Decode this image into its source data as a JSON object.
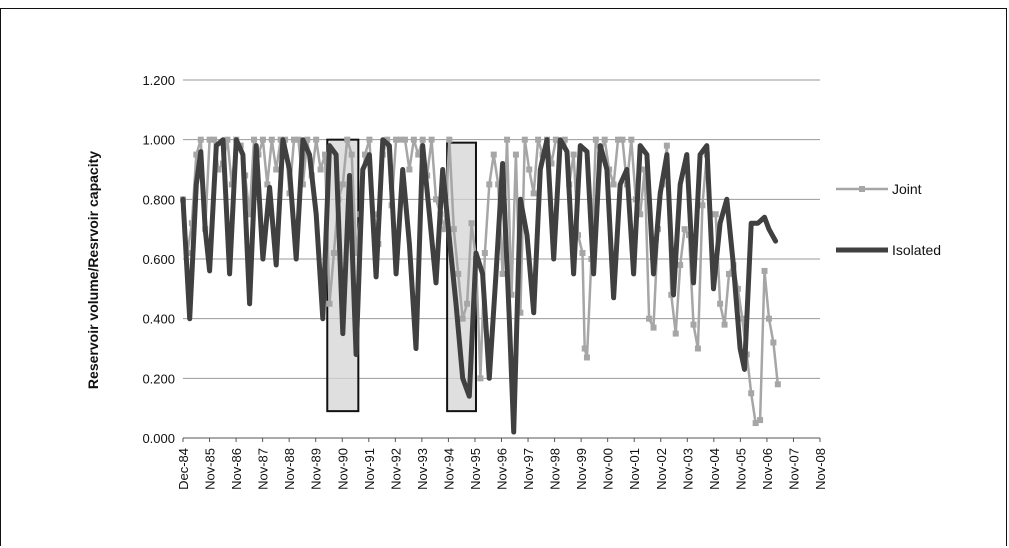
{
  "chart_data": {
    "type": "line",
    "xlabel": "",
    "ylabel": "Reservoir volume/Resrvoir capacity",
    "ylim": [
      0,
      1.2
    ],
    "yticks": [
      "0.000",
      "0.200",
      "0.400",
      "0.600",
      "0.800",
      "1.000",
      "1.200"
    ],
    "xticks": [
      "Dec-84",
      "Nov-85",
      "Nov-86",
      "Nov-87",
      "Nov-88",
      "Nov-89",
      "Nov-90",
      "Nov-91",
      "Nov-92",
      "Nov-93",
      "Nov-94",
      "Nov-95",
      "Nov-96",
      "Nov-97",
      "Nov-98",
      "Nov-99",
      "Nov-00",
      "Nov-01",
      "Nov-02",
      "Nov-03",
      "Nov-04",
      "Nov-05",
      "Nov-06",
      "Nov-07",
      "Nov-08"
    ],
    "x_unit": "months since Dec-84",
    "grid": "horizontal",
    "legend_position": "right",
    "series": [
      {
        "name": "Joint",
        "color": "#a6a6a6",
        "marker": "square",
        "points": [
          [
            0,
            0.8
          ],
          [
            2,
            0.62
          ],
          [
            4,
            0.72
          ],
          [
            6,
            0.95
          ],
          [
            8,
            1.0
          ],
          [
            10,
            0.7
          ],
          [
            12,
            1.0
          ],
          [
            14,
            1.0
          ],
          [
            16,
            0.9
          ],
          [
            18,
            0.92
          ],
          [
            20,
            1.0
          ],
          [
            22,
            0.85
          ],
          [
            24,
            1.0
          ],
          [
            26,
            0.98
          ],
          [
            28,
            0.88
          ],
          [
            30,
            0.75
          ],
          [
            32,
            1.0
          ],
          [
            34,
            0.95
          ],
          [
            36,
            1.0
          ],
          [
            38,
            0.85
          ],
          [
            40,
            1.0
          ],
          [
            42,
            0.9
          ],
          [
            44,
            1.0
          ],
          [
            46,
            1.0
          ],
          [
            48,
            0.82
          ],
          [
            50,
            1.0
          ],
          [
            52,
            1.0
          ],
          [
            54,
            0.85
          ],
          [
            56,
            1.0
          ],
          [
            58,
            0.88
          ],
          [
            60,
            1.0
          ],
          [
            62,
            0.9
          ],
          [
            64,
            0.95
          ],
          [
            66,
            0.45
          ],
          [
            68,
            0.62
          ],
          [
            70,
            0.8
          ],
          [
            72,
            0.85
          ],
          [
            74,
            1.0
          ],
          [
            76,
            0.95
          ],
          [
            78,
            0.62
          ],
          [
            80,
            0.75
          ],
          [
            82,
            0.95
          ],
          [
            84,
            1.0
          ],
          [
            86,
            0.75
          ],
          [
            88,
            0.65
          ],
          [
            90,
            0.95
          ],
          [
            92,
            1.0
          ],
          [
            94,
            0.78
          ],
          [
            96,
            1.0
          ],
          [
            98,
            1.0
          ],
          [
            100,
            1.0
          ],
          [
            102,
            0.9
          ],
          [
            104,
            1.0
          ],
          [
            106,
            0.95
          ],
          [
            108,
            1.0
          ],
          [
            110,
            0.88
          ],
          [
            112,
            1.0
          ],
          [
            114,
            0.8
          ],
          [
            116,
            0.75
          ],
          [
            118,
            0.7
          ],
          [
            120,
            1.0
          ],
          [
            122,
            0.7
          ],
          [
            124,
            0.55
          ],
          [
            126,
            0.4
          ],
          [
            128,
            0.45
          ],
          [
            130,
            0.72
          ],
          [
            132,
            0.6
          ],
          [
            134,
            0.2
          ],
          [
            136,
            0.62
          ],
          [
            138,
            0.85
          ],
          [
            140,
            0.95
          ],
          [
            142,
            0.85
          ],
          [
            144,
            0.55
          ],
          [
            146,
            1.0
          ],
          [
            148,
            0.48
          ],
          [
            150,
            0.95
          ],
          [
            152,
            0.42
          ],
          [
            154,
            1.0
          ],
          [
            156,
            0.9
          ],
          [
            158,
            0.82
          ],
          [
            160,
            1.0
          ],
          [
            162,
            0.95
          ],
          [
            164,
            1.0
          ],
          [
            166,
            0.92
          ],
          [
            168,
            1.0
          ],
          [
            170,
            0.98
          ],
          [
            172,
            1.0
          ],
          [
            174,
            0.85
          ],
          [
            176,
            0.95
          ],
          [
            178,
            0.68
          ],
          [
            180,
            0.62
          ],
          [
            181,
            0.3
          ],
          [
            182,
            0.27
          ],
          [
            184,
            0.6
          ],
          [
            186,
            1.0
          ],
          [
            188,
            0.95
          ],
          [
            190,
            1.0
          ],
          [
            192,
            0.9
          ],
          [
            194,
            0.85
          ],
          [
            196,
            1.0
          ],
          [
            198,
            1.0
          ],
          [
            200,
            0.85
          ],
          [
            202,
            1.0
          ],
          [
            204,
            0.8
          ],
          [
            206,
            0.75
          ],
          [
            208,
            0.9
          ],
          [
            210,
            0.4
          ],
          [
            212,
            0.37
          ],
          [
            214,
            0.7
          ],
          [
            216,
            0.85
          ],
          [
            218,
            0.98
          ],
          [
            220,
            0.48
          ],
          [
            222,
            0.35
          ],
          [
            224,
            0.58
          ],
          [
            226,
            0.7
          ],
          [
            228,
            0.68
          ],
          [
            230,
            0.38
          ],
          [
            232,
            0.3
          ],
          [
            234,
            0.78
          ],
          [
            236,
            0.95
          ],
          [
            238,
            0.75
          ],
          [
            240,
            0.75
          ],
          [
            242,
            0.45
          ],
          [
            244,
            0.38
          ],
          [
            246,
            0.55
          ],
          [
            248,
            0.58
          ],
          [
            250,
            0.5
          ],
          [
            252,
            0.4
          ],
          [
            254,
            0.28
          ],
          [
            256,
            0.15
          ],
          [
            258,
            0.05
          ],
          [
            260,
            0.06
          ],
          [
            262,
            0.56
          ],
          [
            264,
            0.4
          ],
          [
            266,
            0.32
          ],
          [
            268,
            0.18
          ]
        ]
      },
      {
        "name": "Isolated",
        "color": "#404040",
        "marker": "none",
        "points": [
          [
            0,
            0.8
          ],
          [
            3,
            0.4
          ],
          [
            6,
            0.85
          ],
          [
            8,
            0.96
          ],
          [
            10,
            0.7
          ],
          [
            12,
            0.56
          ],
          [
            15,
            0.98
          ],
          [
            18,
            1.0
          ],
          [
            21,
            0.55
          ],
          [
            24,
            1.0
          ],
          [
            27,
            0.95
          ],
          [
            30,
            0.45
          ],
          [
            33,
            0.98
          ],
          [
            36,
            0.6
          ],
          [
            39,
            0.84
          ],
          [
            42,
            0.58
          ],
          [
            45,
            1.0
          ],
          [
            48,
            0.9
          ],
          [
            51,
            0.6
          ],
          [
            54,
            1.0
          ],
          [
            57,
            0.95
          ],
          [
            60,
            0.75
          ],
          [
            63,
            0.4
          ],
          [
            66,
            0.98
          ],
          [
            69,
            0.95
          ],
          [
            72,
            0.35
          ],
          [
            75,
            0.88
          ],
          [
            78,
            0.28
          ],
          [
            81,
            0.9
          ],
          [
            84,
            0.95
          ],
          [
            87,
            0.54
          ],
          [
            90,
            1.0
          ],
          [
            93,
            0.98
          ],
          [
            96,
            0.55
          ],
          [
            99,
            0.9
          ],
          [
            102,
            0.65
          ],
          [
            105,
            0.3
          ],
          [
            108,
            0.98
          ],
          [
            111,
            0.75
          ],
          [
            114,
            0.52
          ],
          [
            117,
            0.9
          ],
          [
            120,
            0.67
          ],
          [
            123,
            0.45
          ],
          [
            126,
            0.2
          ],
          [
            129,
            0.14
          ],
          [
            132,
            0.62
          ],
          [
            135,
            0.55
          ],
          [
            138,
            0.2
          ],
          [
            141,
            0.55
          ],
          [
            144,
            0.92
          ],
          [
            147,
            0.4
          ],
          [
            149,
            0.02
          ],
          [
            152,
            0.8
          ],
          [
            155,
            0.68
          ],
          [
            158,
            0.42
          ],
          [
            161,
            0.9
          ],
          [
            164,
            1.0
          ],
          [
            167,
            0.6
          ],
          [
            170,
            1.0
          ],
          [
            173,
            0.96
          ],
          [
            176,
            0.55
          ],
          [
            179,
            0.98
          ],
          [
            182,
            0.96
          ],
          [
            185,
            0.55
          ],
          [
            188,
            0.98
          ],
          [
            191,
            0.9
          ],
          [
            194,
            0.47
          ],
          [
            197,
            0.85
          ],
          [
            200,
            0.9
          ],
          [
            203,
            0.55
          ],
          [
            206,
            0.98
          ],
          [
            209,
            0.95
          ],
          [
            212,
            0.55
          ],
          [
            215,
            0.82
          ],
          [
            218,
            0.95
          ],
          [
            221,
            0.48
          ],
          [
            224,
            0.85
          ],
          [
            227,
            0.95
          ],
          [
            230,
            0.52
          ],
          [
            233,
            0.95
          ],
          [
            236,
            0.98
          ],
          [
            239,
            0.5
          ],
          [
            242,
            0.72
          ],
          [
            245,
            0.8
          ],
          [
            248,
            0.58
          ],
          [
            251,
            0.3
          ],
          [
            253,
            0.23
          ],
          [
            256,
            0.72
          ],
          [
            259,
            0.72
          ],
          [
            262,
            0.74
          ],
          [
            264,
            0.7
          ],
          [
            267,
            0.66
          ]
        ]
      }
    ],
    "annotations": [
      {
        "type": "shaded-box",
        "x_range": [
          65,
          79
        ],
        "y_range": [
          0.09,
          1.0
        ]
      },
      {
        "type": "shaded-box",
        "x_range": [
          119,
          132
        ],
        "y_range": [
          0.09,
          0.99
        ]
      }
    ]
  }
}
